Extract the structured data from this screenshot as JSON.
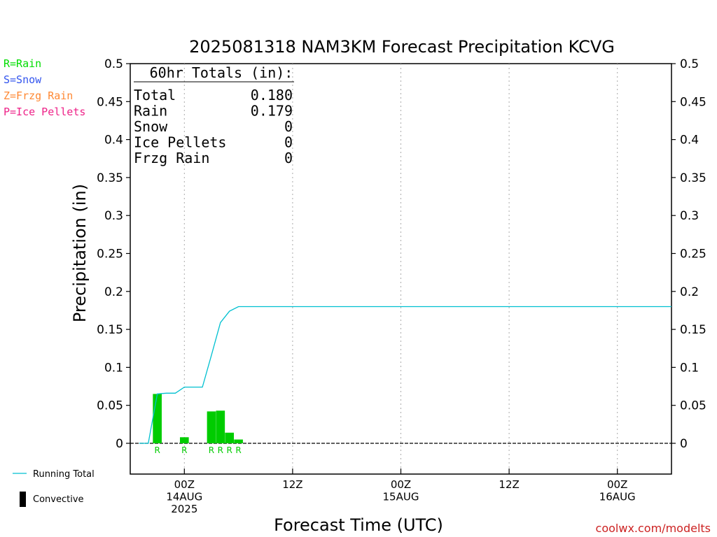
{
  "chart_data": {
    "type": "bar",
    "title": "2025081318 NAM3KM Forecast Precipitation KCVG",
    "xlabel": "Forecast Time (UTC)",
    "ylabel": "Precipitation (in)",
    "ylim": [
      -0.04,
      0.5
    ],
    "yticks": [
      0,
      0.05,
      0.1,
      0.15,
      0.2,
      0.25,
      0.3,
      0.35,
      0.4,
      0.45,
      0.5
    ],
    "ytick_labels": [
      "0",
      "0.05",
      "0.1",
      "0.15",
      "0.2",
      "0.25",
      "0.3",
      "0.35",
      "0.4",
      "0.45",
      "0.5"
    ],
    "x_unit": "forecast hour",
    "xlim": [
      0,
      60
    ],
    "xticks": [
      {
        "hour": 6,
        "lines": [
          "00Z",
          "14AUG",
          "2025"
        ]
      },
      {
        "hour": 18,
        "lines": [
          "12Z"
        ]
      },
      {
        "hour": 30,
        "lines": [
          "00Z",
          "15AUG"
        ]
      },
      {
        "hour": 42,
        "lines": [
          "12Z"
        ]
      },
      {
        "hour": 54,
        "lines": [
          "00Z",
          "16AUG"
        ]
      }
    ],
    "grid": "vertical dotted at tick hours",
    "series": [
      {
        "name": "Convective",
        "kind": "bar",
        "color": "#00cc00",
        "bars": [
          {
            "hour": 3,
            "value": 0.065,
            "ptype": "R"
          },
          {
            "hour": 6,
            "value": 0.008,
            "ptype": "R"
          },
          {
            "hour": 9,
            "value": 0.042,
            "ptype": "R"
          },
          {
            "hour": 10,
            "value": 0.043,
            "ptype": "R"
          },
          {
            "hour": 11,
            "value": 0.014,
            "ptype": "R"
          },
          {
            "hour": 12,
            "value": 0.005,
            "ptype": "R"
          }
        ]
      },
      {
        "name": "Running Total",
        "kind": "line",
        "color": "#00c0d0",
        "points": [
          [
            1,
            0.0
          ],
          [
            2,
            0.0
          ],
          [
            3,
            0.065
          ],
          [
            4,
            0.066
          ],
          [
            5,
            0.066
          ],
          [
            6,
            0.074
          ],
          [
            7,
            0.074
          ],
          [
            8,
            0.074
          ],
          [
            9,
            0.116
          ],
          [
            10,
            0.159
          ],
          [
            11,
            0.174
          ],
          [
            12,
            0.18
          ],
          [
            60,
            0.18
          ]
        ]
      }
    ],
    "totals": {
      "header": "60hr Totals (in):",
      "rows": [
        {
          "label": "Total",
          "value": "0.180"
        },
        {
          "label": "Rain",
          "value": "0.179"
        },
        {
          "label": "Snow",
          "value": "0"
        },
        {
          "label": "Ice Pellets",
          "value": "0"
        },
        {
          "label": "Frzg Rain",
          "value": "0"
        }
      ]
    },
    "ptype_legend": [
      {
        "text": "R=Rain",
        "color": "#00dd00"
      },
      {
        "text": "S=Snow",
        "color": "#3355ee"
      },
      {
        "text": "Z=Frzg Rain",
        "color": "#ff8833"
      },
      {
        "text": "P=Ice Pellets",
        "color": "#ee2288"
      }
    ],
    "legend": [
      {
        "text": "Running Total",
        "symbol": "line",
        "color": "#00c0d0"
      },
      {
        "text": "Convective",
        "symbol": "bar",
        "color": "#000000"
      }
    ],
    "credit": "coolwx.com/modelts"
  }
}
